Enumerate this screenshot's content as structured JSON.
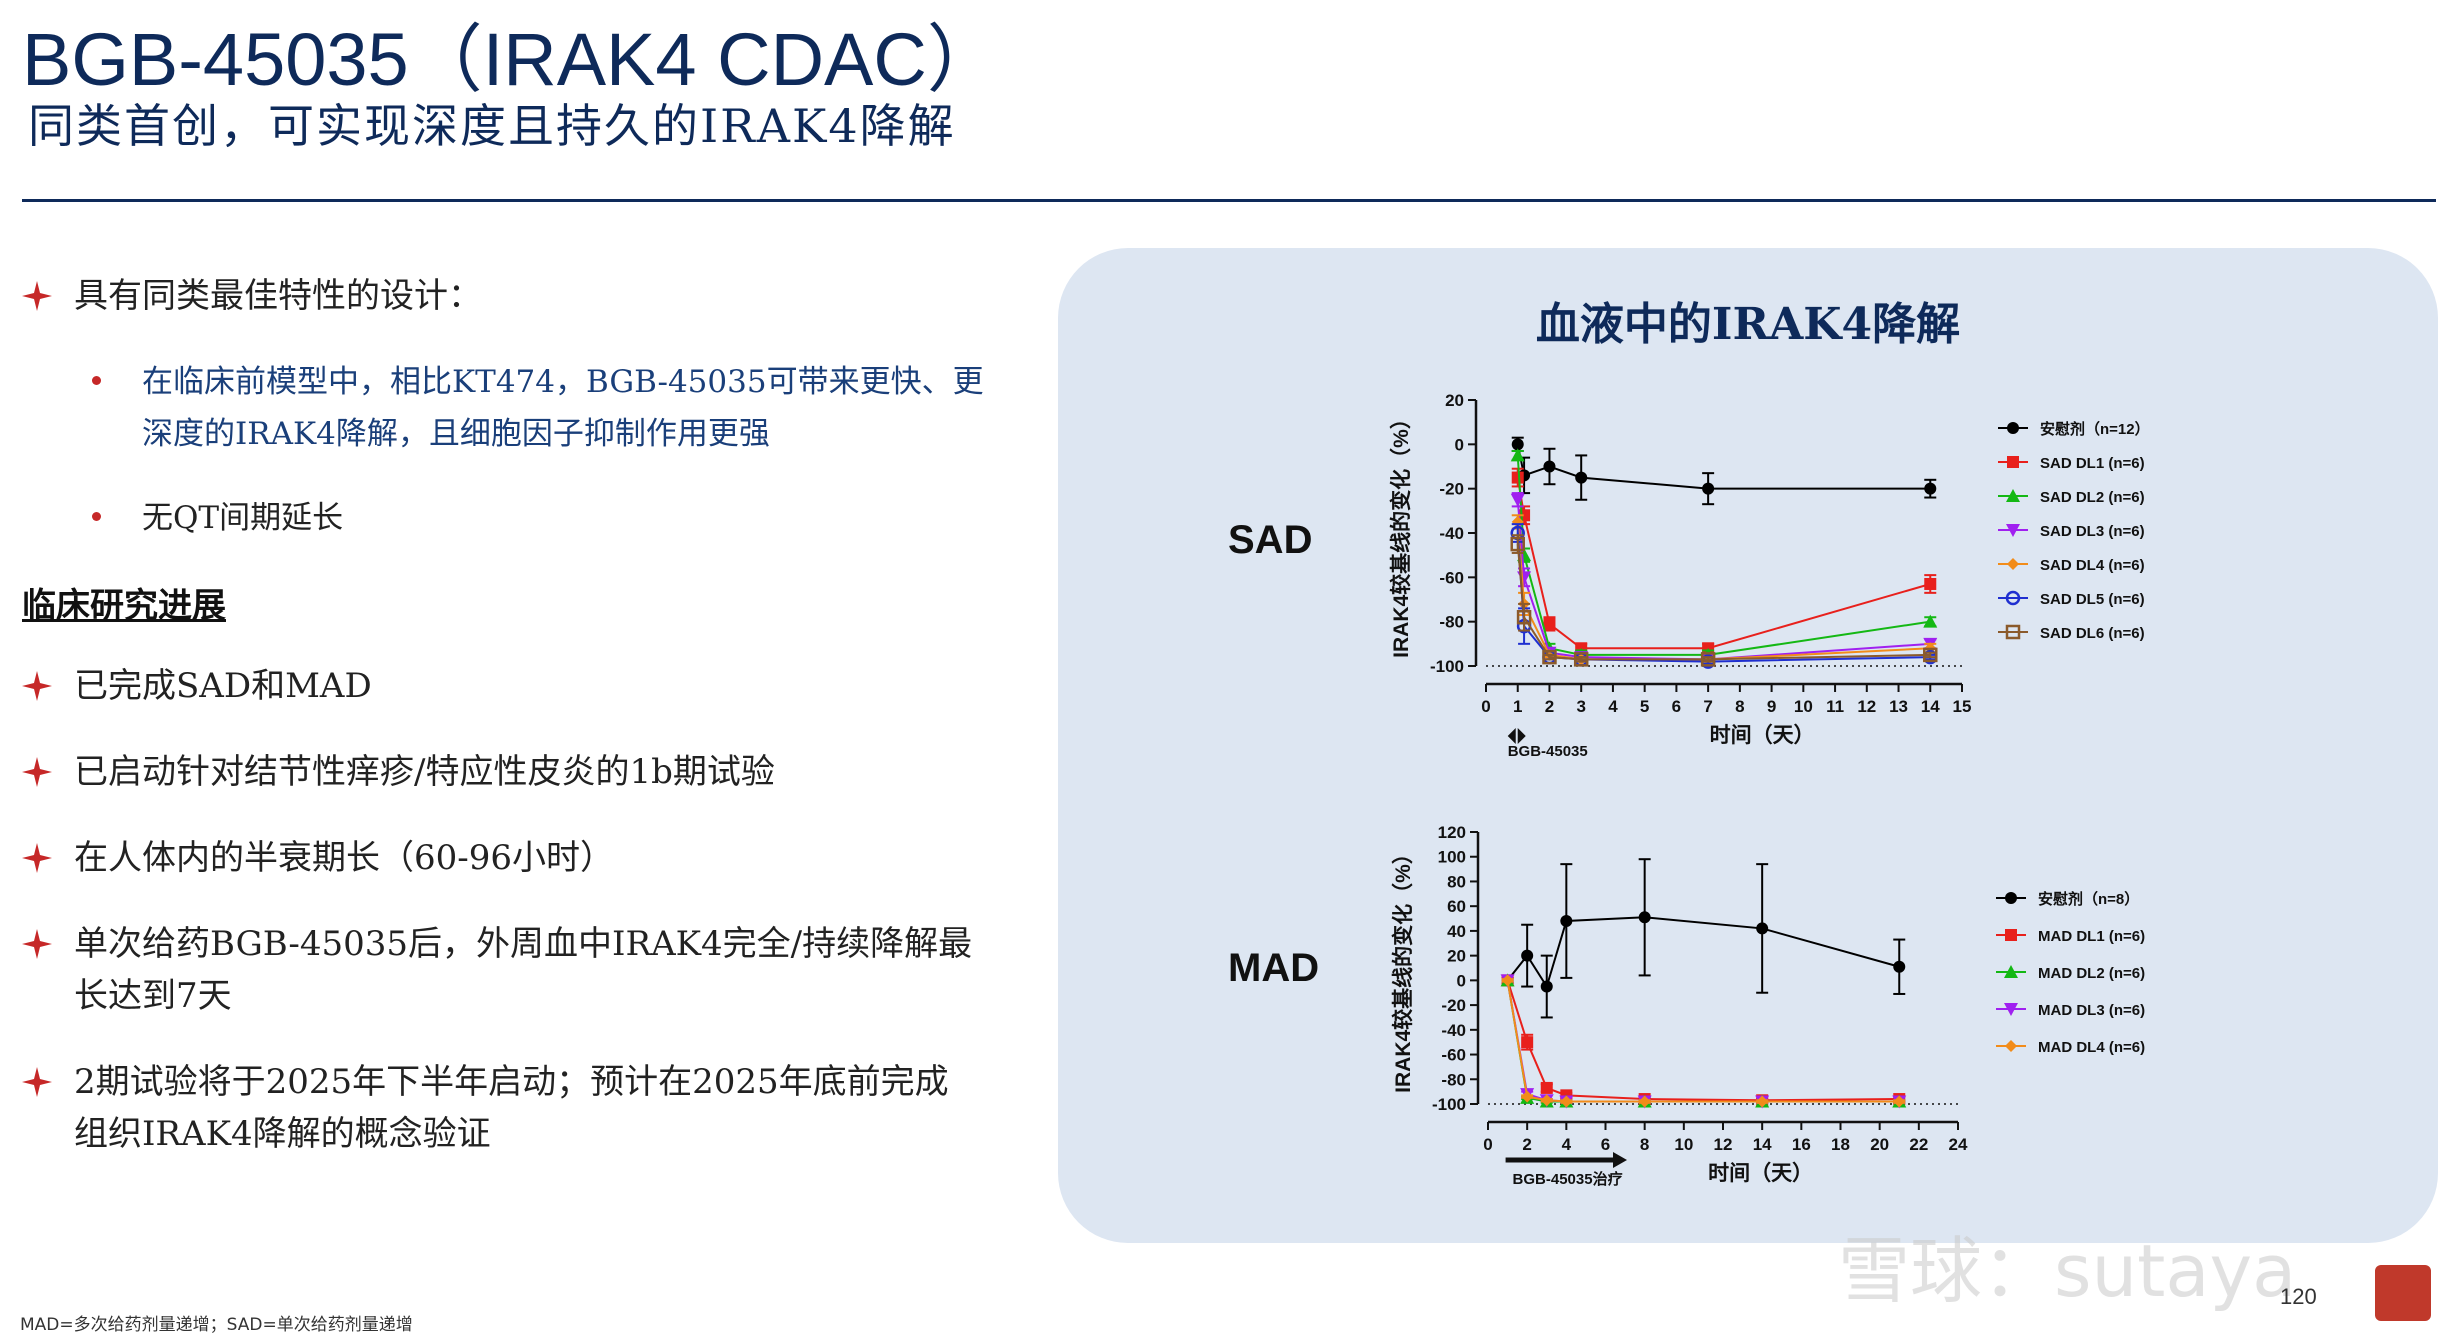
{
  "header": {
    "title": "BGB-45035（IRAK4 CDAC）",
    "subtitle": "同类首创，可实现深度且持久的IRAK4降解"
  },
  "left": {
    "design_heading": "具有同类最佳特性的设计：",
    "design_points": [
      {
        "line1": "在临床前模型中，相比KT474，BGB-45035可带来更快、更",
        "line2": "深度的IRAK4降解，且细胞因子抑制作用更强"
      },
      {
        "line1": "无QT间期延长",
        "line2": ""
      }
    ],
    "progress_heading": "临床研究进展",
    "progress_points": [
      {
        "line1": "已完成SAD和MAD",
        "line2": ""
      },
      {
        "line1": "已启动针对结节性痒疹/特应性皮炎的1b期试验",
        "line2": ""
      },
      {
        "line1": "在人体内的半衰期长（60-96小时）",
        "line2": ""
      },
      {
        "line1": "单次给药BGB-45035后，外周血中IRAK4完全/持续降解最",
        "line2": "长达到7天"
      },
      {
        "line1": "2期试验将于2025年下半年启动；预计在2025年底前完成",
        "line2": "组织IRAK4降解的概念验证"
      }
    ]
  },
  "panel": {
    "title": "血液中的IRAK4降解"
  },
  "chart_data": [
    {
      "type": "line",
      "label": "SAD",
      "ylabel": "IRAK4较基线的变化（%）",
      "xlabel": "时间（天）",
      "dosing_label": "BGB-45035",
      "xlim": [
        0,
        15
      ],
      "ylim": [
        -100,
        20
      ],
      "xticks": [
        0,
        1,
        2,
        3,
        4,
        5,
        6,
        7,
        8,
        9,
        10,
        11,
        12,
        13,
        14,
        15
      ],
      "yticks": [
        20,
        0,
        -20,
        -40,
        -60,
        -80,
        -100
      ],
      "reference_line": -100,
      "series": [
        {
          "name": "安慰剂（n=12）",
          "color": "#000000",
          "marker": "circle",
          "x": [
            1,
            1.2,
            2,
            3,
            7,
            14
          ],
          "y": [
            0,
            -14,
            -10,
            -15,
            -20,
            -20
          ],
          "err": [
            3,
            8,
            8,
            10,
            7,
            4
          ]
        },
        {
          "name": "SAD DL1 (n=6)",
          "color": "#e8201c",
          "marker": "square",
          "x": [
            1,
            1.2,
            2,
            3,
            7,
            14
          ],
          "y": [
            -15,
            -32,
            -81,
            -92,
            -92,
            -63
          ],
          "err": [
            4,
            4,
            3,
            2,
            2,
            4
          ]
        },
        {
          "name": "SAD DL2 (n=6)",
          "color": "#14b814",
          "marker": "triangle-up",
          "x": [
            1,
            1.2,
            2,
            3,
            7,
            14
          ],
          "y": [
            -5,
            -50,
            -92,
            -95,
            -95,
            -80
          ],
          "err": [
            2,
            3,
            2,
            2,
            2,
            2
          ]
        },
        {
          "name": "SAD DL3 (n=6)",
          "color": "#a020f0",
          "marker": "triangle-down",
          "x": [
            1,
            1.2,
            2,
            3,
            7,
            14
          ],
          "y": [
            -25,
            -60,
            -94,
            -96,
            -97,
            -90
          ],
          "err": [
            3,
            4,
            2,
            1,
            1,
            2
          ]
        },
        {
          "name": "SAD DL4 (n=6)",
          "color": "#f28c1a",
          "marker": "diamond",
          "x": [
            1,
            1.2,
            2,
            3,
            7,
            14
          ],
          "y": [
            -35,
            -72,
            -95,
            -97,
            -97,
            -92
          ],
          "err": [
            3,
            5,
            1,
            1,
            1,
            2
          ]
        },
        {
          "name": "SAD DL5 (n=6)",
          "color": "#1f2fd0",
          "marker": "circle-open",
          "x": [
            1,
            1.2,
            2,
            3,
            7,
            14
          ],
          "y": [
            -40,
            -82,
            -96,
            -97,
            -98,
            -96
          ],
          "err": [
            4,
            8,
            1,
            1,
            1,
            1
          ]
        },
        {
          "name": "SAD DL6 (n=6)",
          "color": "#8b5a2b",
          "marker": "square-open",
          "x": [
            1,
            1.2,
            2,
            3,
            7,
            14
          ],
          "y": [
            -45,
            -78,
            -96,
            -97,
            -97,
            -95
          ],
          "err": [
            4,
            6,
            1,
            1,
            1,
            1
          ]
        }
      ]
    },
    {
      "type": "line",
      "label": "MAD",
      "ylabel": "IRAK4较基线的变化（%）",
      "xlabel": "时间（天）",
      "dosing_label": "BGB-45035治疗",
      "xlim": [
        0,
        24
      ],
      "ylim": [
        -100,
        120
      ],
      "xticks": [
        0,
        2,
        4,
        6,
        8,
        10,
        12,
        14,
        16,
        18,
        20,
        22,
        24
      ],
      "yticks": [
        120,
        100,
        80,
        60,
        40,
        20,
        0,
        -20,
        -40,
        -60,
        -80,
        -100
      ],
      "reference_line": -100,
      "series": [
        {
          "name": "安慰剂（n=8）",
          "color": "#000000",
          "marker": "circle",
          "x": [
            1,
            2,
            3,
            4,
            8,
            14,
            21
          ],
          "y": [
            0,
            20,
            -5,
            48,
            51,
            42,
            11
          ],
          "err": [
            2,
            25,
            25,
            46,
            47,
            52,
            22
          ]
        },
        {
          "name": "MAD DL1 (n=6)",
          "color": "#e8201c",
          "marker": "square",
          "x": [
            1,
            2,
            3,
            4,
            8,
            14,
            21
          ],
          "y": [
            0,
            -50,
            -87,
            -93,
            -96,
            -97,
            -96
          ],
          "err": [
            2,
            6,
            3,
            2,
            1,
            1,
            2
          ]
        },
        {
          "name": "MAD DL2 (n=6)",
          "color": "#14b814",
          "marker": "triangle-up",
          "x": [
            1,
            2,
            3,
            4,
            8,
            14,
            21
          ],
          "y": [
            0,
            -95,
            -98,
            -98,
            -98,
            -98,
            -98
          ],
          "err": [
            1,
            1,
            1,
            1,
            1,
            1,
            1
          ]
        },
        {
          "name": "MAD DL3 (n=6)",
          "color": "#a020f0",
          "marker": "triangle-down",
          "x": [
            1,
            2,
            3,
            4,
            8,
            14,
            21
          ],
          "y": [
            0,
            -92,
            -97,
            -98,
            -98,
            -98,
            -98
          ],
          "err": [
            1,
            2,
            1,
            1,
            1,
            1,
            1
          ]
        },
        {
          "name": "MAD DL4 (n=6)",
          "color": "#f28c1a",
          "marker": "diamond",
          "x": [
            1,
            2,
            3,
            4,
            8,
            14,
            21
          ],
          "y": [
            0,
            -94,
            -97,
            -98,
            -98,
            -98,
            -98
          ],
          "err": [
            1,
            1,
            1,
            1,
            1,
            1,
            1
          ]
        }
      ]
    }
  ],
  "footer": {
    "note": "MAD=多次给药剂量递增；SAD=单次给药剂量递增",
    "page": "120",
    "watermark": "雪球：sutaya"
  },
  "colors": {
    "navy": "#0e2a5a",
    "accent_red": "#c62828",
    "panel_bg": "#dde6f2"
  }
}
